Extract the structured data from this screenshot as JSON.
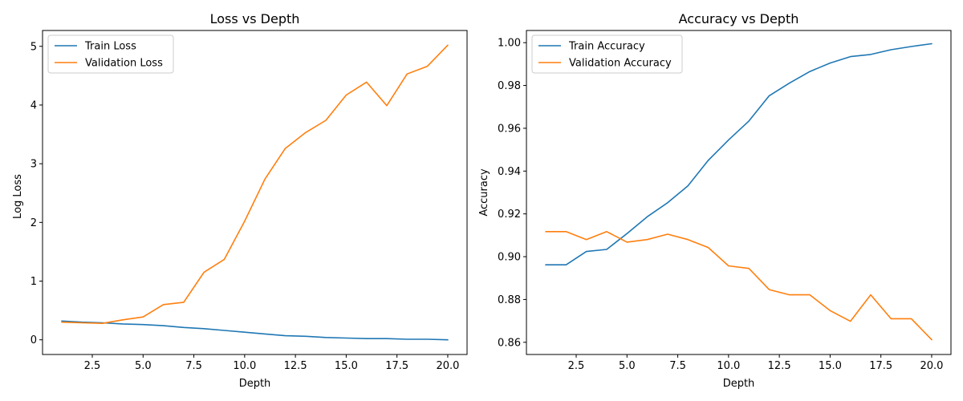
{
  "chart_data": [
    {
      "type": "line",
      "title": "Loss vs Depth",
      "xlabel": "Depth",
      "ylabel": "Log Loss",
      "xlim": [
        0.05,
        20.95
      ],
      "ylim": [
        -0.25,
        5.27
      ],
      "xticks": [
        2.5,
        5.0,
        7.5,
        10.0,
        12.5,
        15.0,
        17.5,
        20.0
      ],
      "xtick_labels": [
        "2.5",
        "5.0",
        "7.5",
        "10.0",
        "12.5",
        "15.0",
        "17.5",
        "20.0"
      ],
      "yticks": [
        0,
        1,
        2,
        3,
        4,
        5
      ],
      "ytick_labels": [
        "0",
        "1",
        "2",
        "3",
        "4",
        "5"
      ],
      "legend_position": "top-left",
      "grid": false,
      "x": [
        1,
        2,
        3,
        4,
        5,
        6,
        7,
        8,
        9,
        10,
        11,
        12,
        13,
        14,
        15,
        16,
        17,
        18,
        19,
        20
      ],
      "series": [
        {
          "name": "Train Loss",
          "color": "#1f77b4",
          "values": [
            0.32,
            0.3,
            0.29,
            0.27,
            0.26,
            0.24,
            0.21,
            0.19,
            0.16,
            0.13,
            0.1,
            0.07,
            0.06,
            0.04,
            0.03,
            0.02,
            0.02,
            0.01,
            0.01,
            0.0
          ]
        },
        {
          "name": "Validation Loss",
          "color": "#ff7f0e",
          "values": [
            0.3,
            0.29,
            0.28,
            0.34,
            0.39,
            0.6,
            0.64,
            1.15,
            1.37,
            2.02,
            2.74,
            3.26,
            3.53,
            3.74,
            4.17,
            4.39,
            3.99,
            4.53,
            4.66,
            5.02
          ]
        }
      ]
    },
    {
      "type": "line",
      "title": "Accuracy vs Depth",
      "xlabel": "Depth",
      "ylabel": "Accuracy",
      "xlim": [
        0.05,
        20.95
      ],
      "ylim": [
        0.8543,
        1.0057
      ],
      "xticks": [
        2.5,
        5.0,
        7.5,
        10.0,
        12.5,
        15.0,
        17.5,
        20.0
      ],
      "xtick_labels": [
        "2.5",
        "5.0",
        "7.5",
        "10.0",
        "12.5",
        "15.0",
        "17.5",
        "20.0"
      ],
      "yticks": [
        0.86,
        0.88,
        0.9,
        0.92,
        0.94,
        0.96,
        0.98,
        1.0
      ],
      "ytick_labels": [
        "0.86",
        "0.88",
        "0.90",
        "0.92",
        "0.94",
        "0.96",
        "0.98",
        "1.00"
      ],
      "legend_position": "top-left",
      "grid": false,
      "x": [
        1,
        2,
        3,
        4,
        5,
        6,
        7,
        8,
        9,
        10,
        11,
        12,
        13,
        14,
        15,
        16,
        17,
        18,
        19,
        20
      ],
      "series": [
        {
          "name": "Train Accuracy",
          "color": "#1f77b4",
          "values": [
            0.8962,
            0.8962,
            0.9024,
            0.9034,
            0.9108,
            0.9187,
            0.9252,
            0.9331,
            0.945,
            0.9545,
            0.9634,
            0.9752,
            0.9811,
            0.9865,
            0.9905,
            0.9935,
            0.9945,
            0.9967,
            0.9982,
            0.9995
          ]
        },
        {
          "name": "Validation Accuracy",
          "color": "#ff7f0e",
          "values": [
            0.9117,
            0.9117,
            0.908,
            0.9117,
            0.9068,
            0.908,
            0.9105,
            0.908,
            0.9043,
            0.8957,
            0.8945,
            0.8846,
            0.8822,
            0.8822,
            0.8748,
            0.8698,
            0.8822,
            0.871,
            0.871,
            0.8612
          ]
        }
      ]
    }
  ]
}
